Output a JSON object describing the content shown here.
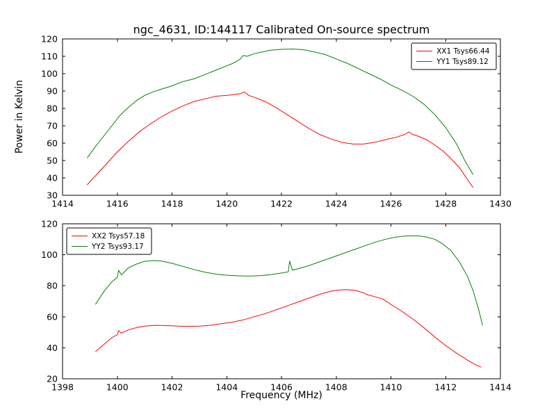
{
  "figure": {
    "background": "#ffffff",
    "frame_color": "#000000"
  },
  "chart_data": [
    {
      "type": "line",
      "name": "top-spectrum",
      "title": "ngc_4631, ID:144117 Calibrated On-source spectrum",
      "xlabel": "",
      "ylabel": "Power in Kelvin",
      "xlim": [
        1414,
        1430
      ],
      "ylim": [
        30,
        120
      ],
      "xticks": [
        1414,
        1416,
        1418,
        1420,
        1422,
        1424,
        1426,
        1428,
        1430
      ],
      "yticks": [
        30,
        40,
        50,
        60,
        70,
        80,
        90,
        100,
        110,
        120
      ],
      "grid": false,
      "legend": {
        "loc": "upper right"
      },
      "series": [
        {
          "name": "XX1 Tsys66.44",
          "color": "#ff0000",
          "x": [
            1414.9,
            1415.25,
            1415.6,
            1416.0,
            1416.4,
            1416.8,
            1417.2,
            1417.6,
            1418.0,
            1418.4,
            1418.8,
            1419.2,
            1419.6,
            1420.0,
            1420.3,
            1420.5,
            1420.65,
            1420.8,
            1421.0,
            1421.4,
            1421.8,
            1422.2,
            1422.6,
            1423.0,
            1423.4,
            1423.8,
            1424.2,
            1424.6,
            1425.0,
            1425.4,
            1425.8,
            1426.2,
            1426.5,
            1426.65,
            1426.8,
            1427.0,
            1427.3,
            1427.6,
            1427.9,
            1428.2,
            1428.5,
            1428.8,
            1429.0
          ],
          "y": [
            36,
            42,
            48,
            55,
            61,
            66.5,
            71,
            75,
            78.5,
            81.5,
            84,
            85.5,
            87,
            87.5,
            88,
            88.5,
            89.5,
            87.5,
            86.5,
            84,
            80.5,
            76.5,
            72.5,
            68.5,
            65,
            62.5,
            60.5,
            59.5,
            59.5,
            60.5,
            62,
            63.5,
            65,
            66.5,
            65,
            64,
            62,
            59,
            55.5,
            51,
            46,
            39,
            34.5
          ]
        },
        {
          "name": "YY1 Tsys89.12",
          "color": "#008000",
          "x": [
            1414.9,
            1415.2,
            1415.5,
            1415.8,
            1416.1,
            1416.4,
            1416.7,
            1417.0,
            1417.3,
            1417.6,
            1418.0,
            1418.4,
            1418.8,
            1419.2,
            1419.6,
            1420.0,
            1420.3,
            1420.5,
            1420.6,
            1420.75,
            1421.0,
            1421.3,
            1421.6,
            1422.0,
            1422.4,
            1422.8,
            1423.2,
            1423.6,
            1424.0,
            1424.4,
            1424.8,
            1425.0,
            1425.2,
            1425.6,
            1426.0,
            1426.4,
            1426.8,
            1427.2,
            1427.6,
            1428.0,
            1428.4,
            1428.7,
            1429.0
          ],
          "y": [
            51.5,
            58,
            64,
            70,
            76,
            80.5,
            84.5,
            87.5,
            89.5,
            91,
            93,
            95.5,
            97,
            99.5,
            102,
            104.5,
            106.5,
            108.5,
            110.5,
            110,
            111.5,
            112.5,
            113.5,
            114,
            114.2,
            113.8,
            112.5,
            111,
            108.5,
            106,
            103,
            101.5,
            100,
            97,
            93.5,
            90.5,
            87,
            82.5,
            76.5,
            69,
            59.5,
            50,
            42
          ]
        }
      ]
    },
    {
      "type": "line",
      "name": "bottom-spectrum",
      "title": "",
      "xlabel": "Frequency (MHz)",
      "ylabel": "",
      "xlim": [
        1398,
        1414
      ],
      "ylim": [
        20,
        120
      ],
      "xticks": [
        1398,
        1400,
        1402,
        1404,
        1406,
        1408,
        1410,
        1412,
        1414
      ],
      "yticks": [
        20,
        40,
        60,
        80,
        100,
        120
      ],
      "grid": false,
      "legend": {
        "loc": "upper left"
      },
      "series": [
        {
          "name": "XX2 Tsys57.18",
          "color": "#ff0000",
          "x": [
            1399.2,
            1399.5,
            1399.8,
            1400.0,
            1400.05,
            1400.15,
            1400.4,
            1400.7,
            1401.0,
            1401.4,
            1401.8,
            1402.2,
            1402.6,
            1403.0,
            1403.4,
            1403.8,
            1404.2,
            1404.6,
            1405.0,
            1405.4,
            1405.8,
            1406.2,
            1406.6,
            1407.0,
            1407.4,
            1407.8,
            1408.1,
            1408.4,
            1408.7,
            1409.0,
            1409.1,
            1409.4,
            1409.7,
            1410.0,
            1410.4,
            1410.8,
            1411.2,
            1411.6,
            1412.0,
            1412.4,
            1412.8,
            1413.1,
            1413.3
          ],
          "y": [
            37.5,
            42,
            46.5,
            48.5,
            51,
            49.5,
            51.5,
            53,
            54,
            54.5,
            54.3,
            54,
            53.8,
            54,
            54.5,
            55.5,
            56.5,
            58,
            60,
            62,
            64.5,
            67,
            69.5,
            72,
            74.5,
            76.5,
            77.3,
            77.5,
            77,
            75.5,
            74.5,
            73,
            71.5,
            68,
            63.5,
            58.5,
            53,
            47,
            41.5,
            36.5,
            32,
            29,
            27.5
          ]
        },
        {
          "name": "YY2 Tsys93.17",
          "color": "#008000",
          "x": [
            1399.2,
            1399.5,
            1399.8,
            1400.0,
            1400.05,
            1400.15,
            1400.4,
            1400.7,
            1401.0,
            1401.3,
            1401.6,
            1402.0,
            1402.4,
            1402.8,
            1403.2,
            1403.6,
            1404.0,
            1404.4,
            1404.8,
            1405.2,
            1405.6,
            1406.0,
            1406.25,
            1406.3,
            1406.4,
            1406.7,
            1407.0,
            1407.4,
            1407.8,
            1408.2,
            1408.6,
            1409.0,
            1409.4,
            1409.8,
            1410.2,
            1410.6,
            1411.0,
            1411.3,
            1411.6,
            1411.9,
            1412.2,
            1412.5,
            1412.8,
            1413.0,
            1413.2,
            1413.35
          ],
          "y": [
            68,
            76,
            82.5,
            85.5,
            90,
            87,
            91.5,
            94,
            95.8,
            96.3,
            96,
            94.5,
            92.5,
            90.5,
            88.8,
            87.5,
            86.8,
            86.4,
            86.3,
            86.5,
            87.2,
            88.2,
            89,
            96,
            90,
            91.5,
            93,
            95.5,
            98,
            100.5,
            103,
            105.5,
            108,
            110,
            111.5,
            112.2,
            112.2,
            111.5,
            110,
            107,
            102.5,
            95.5,
            86,
            77,
            65,
            54.5
          ]
        }
      ]
    }
  ]
}
